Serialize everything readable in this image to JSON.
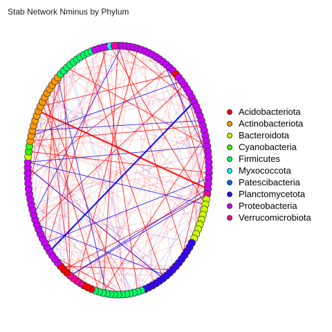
{
  "title": "Stab Network Nminus by Phylum",
  "legend": [
    {
      "label": "Acidobacteriota",
      "color": "#ff0000"
    },
    {
      "label": "Actinobacteriota",
      "color": "#ff9900"
    },
    {
      "label": "Bacteroidota",
      "color": "#ccff00"
    },
    {
      "label": "Cyanobacteria",
      "color": "#33ff00"
    },
    {
      "label": "Firmicutes",
      "color": "#00ff66"
    },
    {
      "label": "Myxococcota",
      "color": "#00ffff"
    },
    {
      "label": "Patescibacteria",
      "color": "#0066ff"
    },
    {
      "label": "Planctomycetota",
      "color": "#3300ff"
    },
    {
      "label": "Proteobacteria",
      "color": "#cc00ff"
    },
    {
      "label": "Verrucomicrobiota",
      "color": "#ff0099"
    }
  ],
  "network": {
    "layout": "circle",
    "segments": [
      {
        "phylum": "Proteobacteria",
        "count": 16
      },
      {
        "phylum": "Acidobacteriota",
        "count": 1
      },
      {
        "phylum": "Proteobacteria",
        "count": 24
      },
      {
        "phylum": "Verrucomicrobiota",
        "count": 1
      },
      {
        "phylum": "Bacteroidota",
        "count": 9
      },
      {
        "phylum": "Planctomycetota",
        "count": 16
      },
      {
        "phylum": "Firmicutes",
        "count": 13
      },
      {
        "phylum": "Acidobacteriota",
        "count": 3
      },
      {
        "phylum": "Verrucomicrobiota",
        "count": 4
      },
      {
        "phylum": "Acidobacteriota",
        "count": 3
      },
      {
        "phylum": "Proteobacteria",
        "count": 22
      },
      {
        "phylum": "Bacteroidota",
        "count": 1
      },
      {
        "phylum": "Cyanobacteria",
        "count": 2
      },
      {
        "phylum": "Actinobacteriota",
        "count": 15
      },
      {
        "phylum": "Firmicutes",
        "count": 10
      },
      {
        "phylum": "Proteobacteria",
        "count": 4
      },
      {
        "phylum": "Myxococcota",
        "count": 1
      },
      {
        "phylum": "Verrucomicrobiota",
        "count": 1
      }
    ],
    "edge_colors": {
      "positive": "#ff0000",
      "negative": "#0000ff"
    }
  }
}
